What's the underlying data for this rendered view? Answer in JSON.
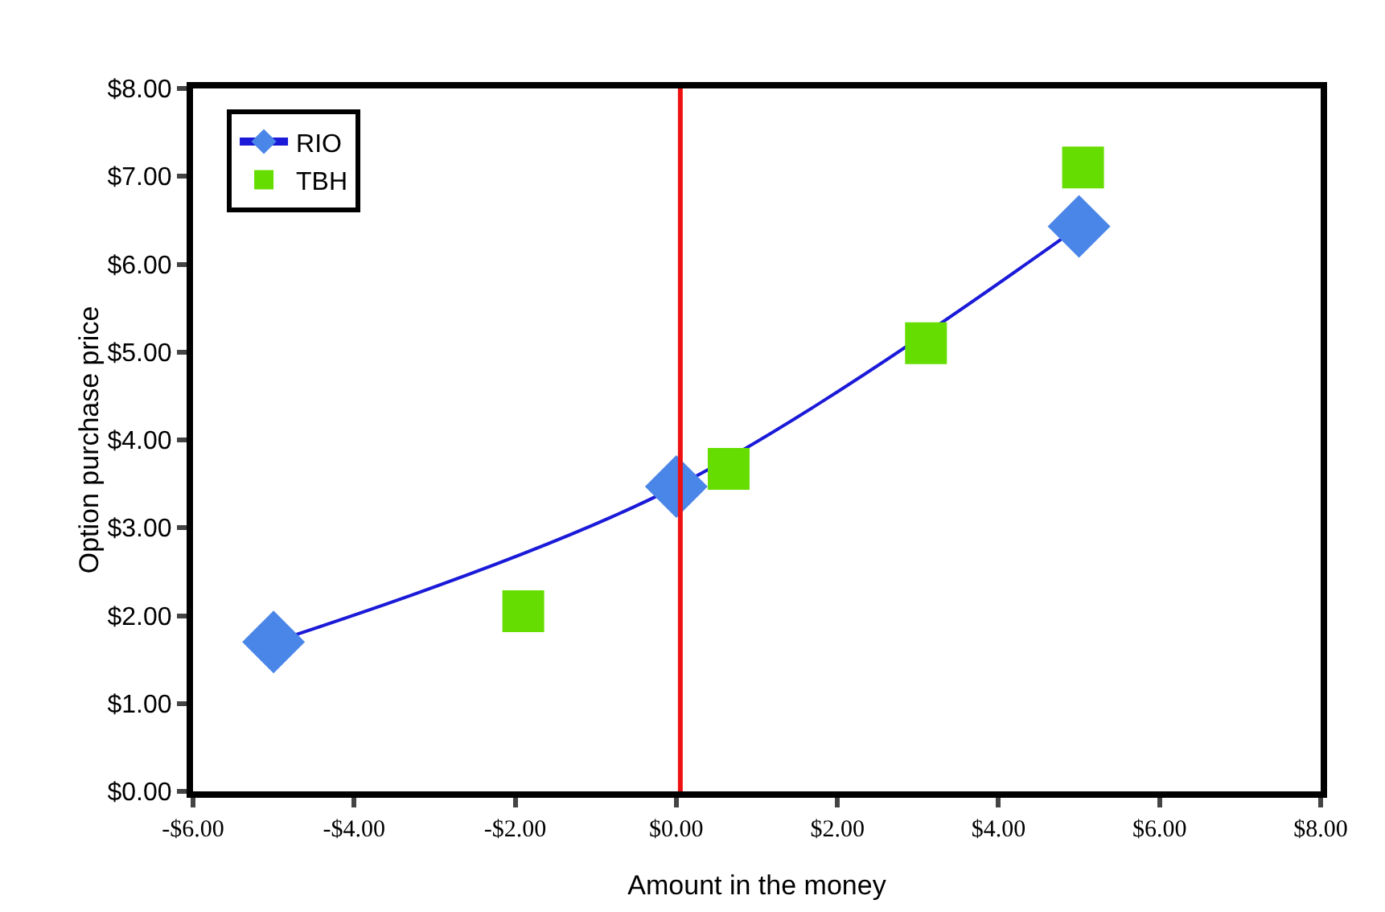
{
  "chart_data": {
    "type": "scatter",
    "xlabel": "Amount in the money",
    "ylabel": "Option purchase price",
    "series": [
      {
        "name": "RIO",
        "type": "line",
        "marker": "diamond",
        "color": "#4a86e8",
        "x": [
          -5,
          0,
          5
        ],
        "values": [
          1.7,
          3.47,
          6.43
        ]
      },
      {
        "name": "TBH",
        "type": "scatter",
        "marker": "square",
        "color": "#66dd00",
        "x": [
          -1.9,
          0.65,
          3.1,
          5.05
        ],
        "values": [
          2.05,
          3.67,
          5.1,
          7.1
        ]
      }
    ],
    "xlim": [
      -6,
      8
    ],
    "ylim": [
      0,
      8
    ],
    "xticks": [
      {
        "value": -6,
        "label": "-$6.00"
      },
      {
        "value": -4,
        "label": "-$4.00"
      },
      {
        "value": -2,
        "label": "-$2.00"
      },
      {
        "value": 0,
        "label": "$0.00"
      },
      {
        "value": 2,
        "label": "$2.00"
      },
      {
        "value": 4,
        "label": "$4.00"
      },
      {
        "value": 6,
        "label": "$6.00"
      },
      {
        "value": 8,
        "label": "$8.00"
      }
    ],
    "yticks": [
      {
        "value": 0,
        "label": "$0.00"
      },
      {
        "value": 1,
        "label": "$1.00"
      },
      {
        "value": 2,
        "label": "$2.00"
      },
      {
        "value": 3,
        "label": "$3.00"
      },
      {
        "value": 4,
        "label": "$4.00"
      },
      {
        "value": 5,
        "label": "$5.00"
      },
      {
        "value": 6,
        "label": "$6.00"
      },
      {
        "value": 7,
        "label": "$7.00"
      },
      {
        "value": 8,
        "label": "$8.00"
      }
    ],
    "ref_lines": [
      {
        "axis": "x",
        "value": 0.05,
        "color": "#ee1111"
      }
    ],
    "grid": false,
    "legend": "top left"
  }
}
